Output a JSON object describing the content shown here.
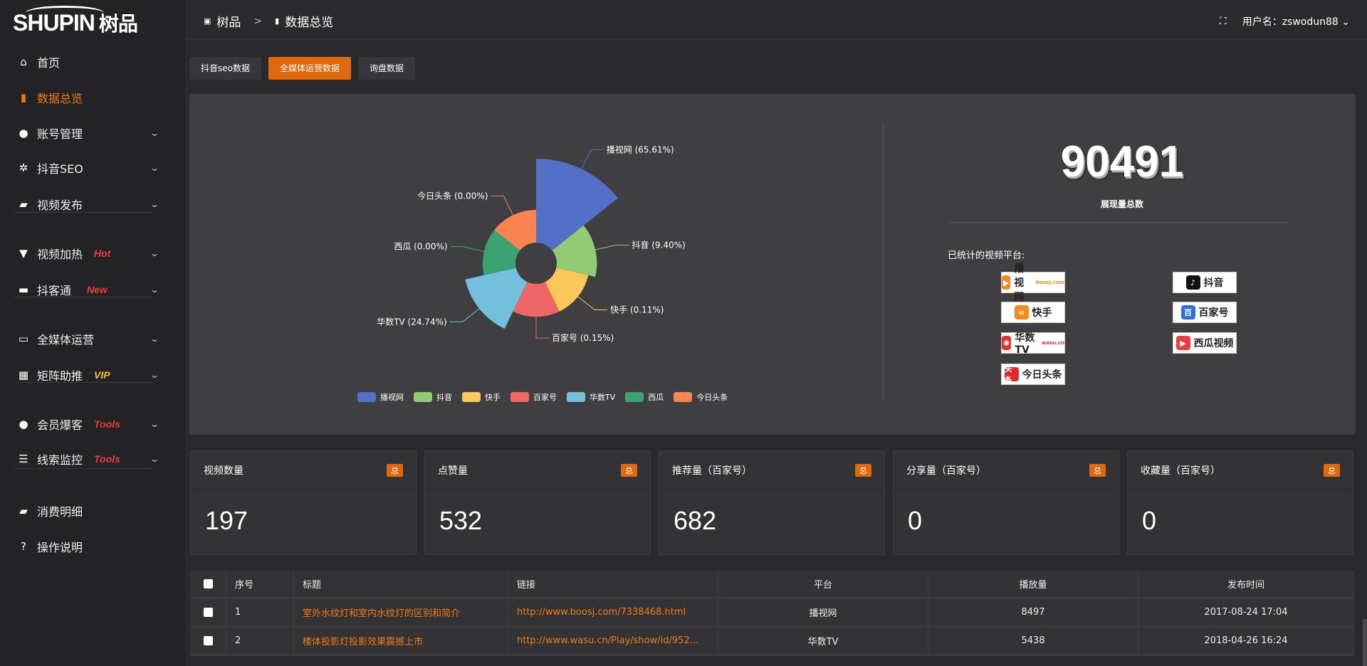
{
  "logo": {
    "text": "SHUPIN",
    "cn": "树品"
  },
  "breadcrumb": {
    "root": "树品",
    "sep": ">",
    "current": "数据总览"
  },
  "user": {
    "label": "用户名：zswodun88",
    "caret": "⌄"
  },
  "sidebar": {
    "items": [
      {
        "label": "首页",
        "icon": "home-icon",
        "glyph": "⌂"
      },
      {
        "label": "数据总览",
        "icon": "bar-chart-icon",
        "glyph": "▮",
        "active": true
      },
      {
        "label": "账号管理",
        "icon": "user-icon",
        "glyph": "●",
        "chev": true
      },
      {
        "label": "抖音SEO",
        "icon": "gear-icon",
        "glyph": "✲",
        "chev": true
      },
      {
        "label": "视频发布",
        "icon": "camera-icon",
        "glyph": "▰",
        "chev": true
      },
      {
        "label": "视频加热",
        "icon": "heater-icon",
        "glyph": "▼",
        "chev": true,
        "tag": "Hot",
        "tag_color": "#ee3b3b"
      },
      {
        "label": "抖客通",
        "icon": "chat-icon",
        "glyph": "▬",
        "chev": true,
        "tag": "New",
        "tag_color": "#ee3b3b"
      },
      {
        "label": "全媒体运营",
        "icon": "monitor-icon",
        "glyph": "▭",
        "chev": true
      },
      {
        "label": "矩阵助推",
        "icon": "grid-icon",
        "glyph": "▦",
        "chev": true,
        "tag": "VIP",
        "tag_color": "#f2c13c"
      },
      {
        "label": "会员爆客",
        "icon": "user-icon",
        "glyph": "●",
        "chev": true,
        "tag": "Tools",
        "tag_color": "#ee3b3b"
      },
      {
        "label": "线索监控",
        "icon": "sliders-icon",
        "glyph": "☰",
        "chev": true,
        "tag": "Tools",
        "tag_color": "#ee3b3b"
      },
      {
        "label": "消费明细",
        "icon": "wallet-icon",
        "glyph": "▰"
      },
      {
        "label": "操作说明",
        "icon": "help-icon",
        "glyph": "?"
      }
    ]
  },
  "tabs": [
    {
      "label": "抖音seo数据"
    },
    {
      "label": "全媒体运营数据",
      "active": true
    },
    {
      "label": "询盘数据"
    }
  ],
  "chart_data": {
    "type": "pie",
    "variant": "rose",
    "categories": [
      "播视网",
      "抖音",
      "快手",
      "百家号",
      "华数TV",
      "西瓜",
      "今日头条"
    ],
    "percents": [
      65.61,
      9.4,
      0.11,
      0.15,
      24.74,
      0.0,
      0.0
    ],
    "labels": [
      "播视网 (65.61%)",
      "抖音 (9.40%)",
      "快手 (0.11%)",
      "百家号 (0.15%)",
      "华数TV (24.74%)",
      "西瓜 (0.00%)",
      "今日头条 (0.00%)"
    ],
    "colors": [
      "#5470c6",
      "#91cc75",
      "#fac858",
      "#ee6666",
      "#73c0de",
      "#3ba272",
      "#fc8452"
    ],
    "legend_position": "bottom"
  },
  "summary": {
    "total": "90491",
    "total_label": "展现量总数",
    "platforms_title": "已统计的视频平台:"
  },
  "platforms": [
    {
      "name": "播视网",
      "sub": "boosj.com",
      "color": "#f08a1c",
      "glyph": "▶"
    },
    {
      "name": "抖音",
      "color": "#111",
      "glyph": "♪"
    },
    {
      "name": "快手",
      "color": "#f58b1f",
      "glyph": "∞"
    },
    {
      "name": "百家号",
      "color": "#2f6fde",
      "glyph": "百"
    },
    {
      "name": "华数TV",
      "sub": "wasu.cn",
      "color": "#e8312a",
      "glyph": "✺"
    },
    {
      "name": "西瓜视频",
      "color": "#f03c3c",
      "glyph": "▶"
    },
    {
      "name": "今日头条",
      "color": "#e3272d",
      "glyph": "头条"
    }
  ],
  "stats": [
    {
      "label": "视频数量",
      "badge": "总",
      "value": "197"
    },
    {
      "label": "点赞量",
      "badge": "总",
      "value": "532"
    },
    {
      "label": "推荐量（百家号）",
      "badge": "总",
      "value": "682"
    },
    {
      "label": "分享量（百家号）",
      "badge": "总",
      "value": "0"
    },
    {
      "label": "收藏量（百家号）",
      "badge": "总",
      "value": "0"
    }
  ],
  "table": {
    "headers": [
      "序号",
      "标题",
      "链接",
      "平台",
      "播放量",
      "发布时间"
    ],
    "rows": [
      [
        "1",
        "室外水纹灯和室内水纹灯的区别和简介",
        "http://www.boosj.com/7338468.html",
        "播视网",
        "8497",
        "2017-08-24 17:04"
      ],
      [
        "2",
        "楼体投影灯投影效果震撼上市",
        "http://www.wasu.cn/Play/show/id/952...",
        "华数TV",
        "5438",
        "2018-04-26 16:24"
      ]
    ]
  }
}
